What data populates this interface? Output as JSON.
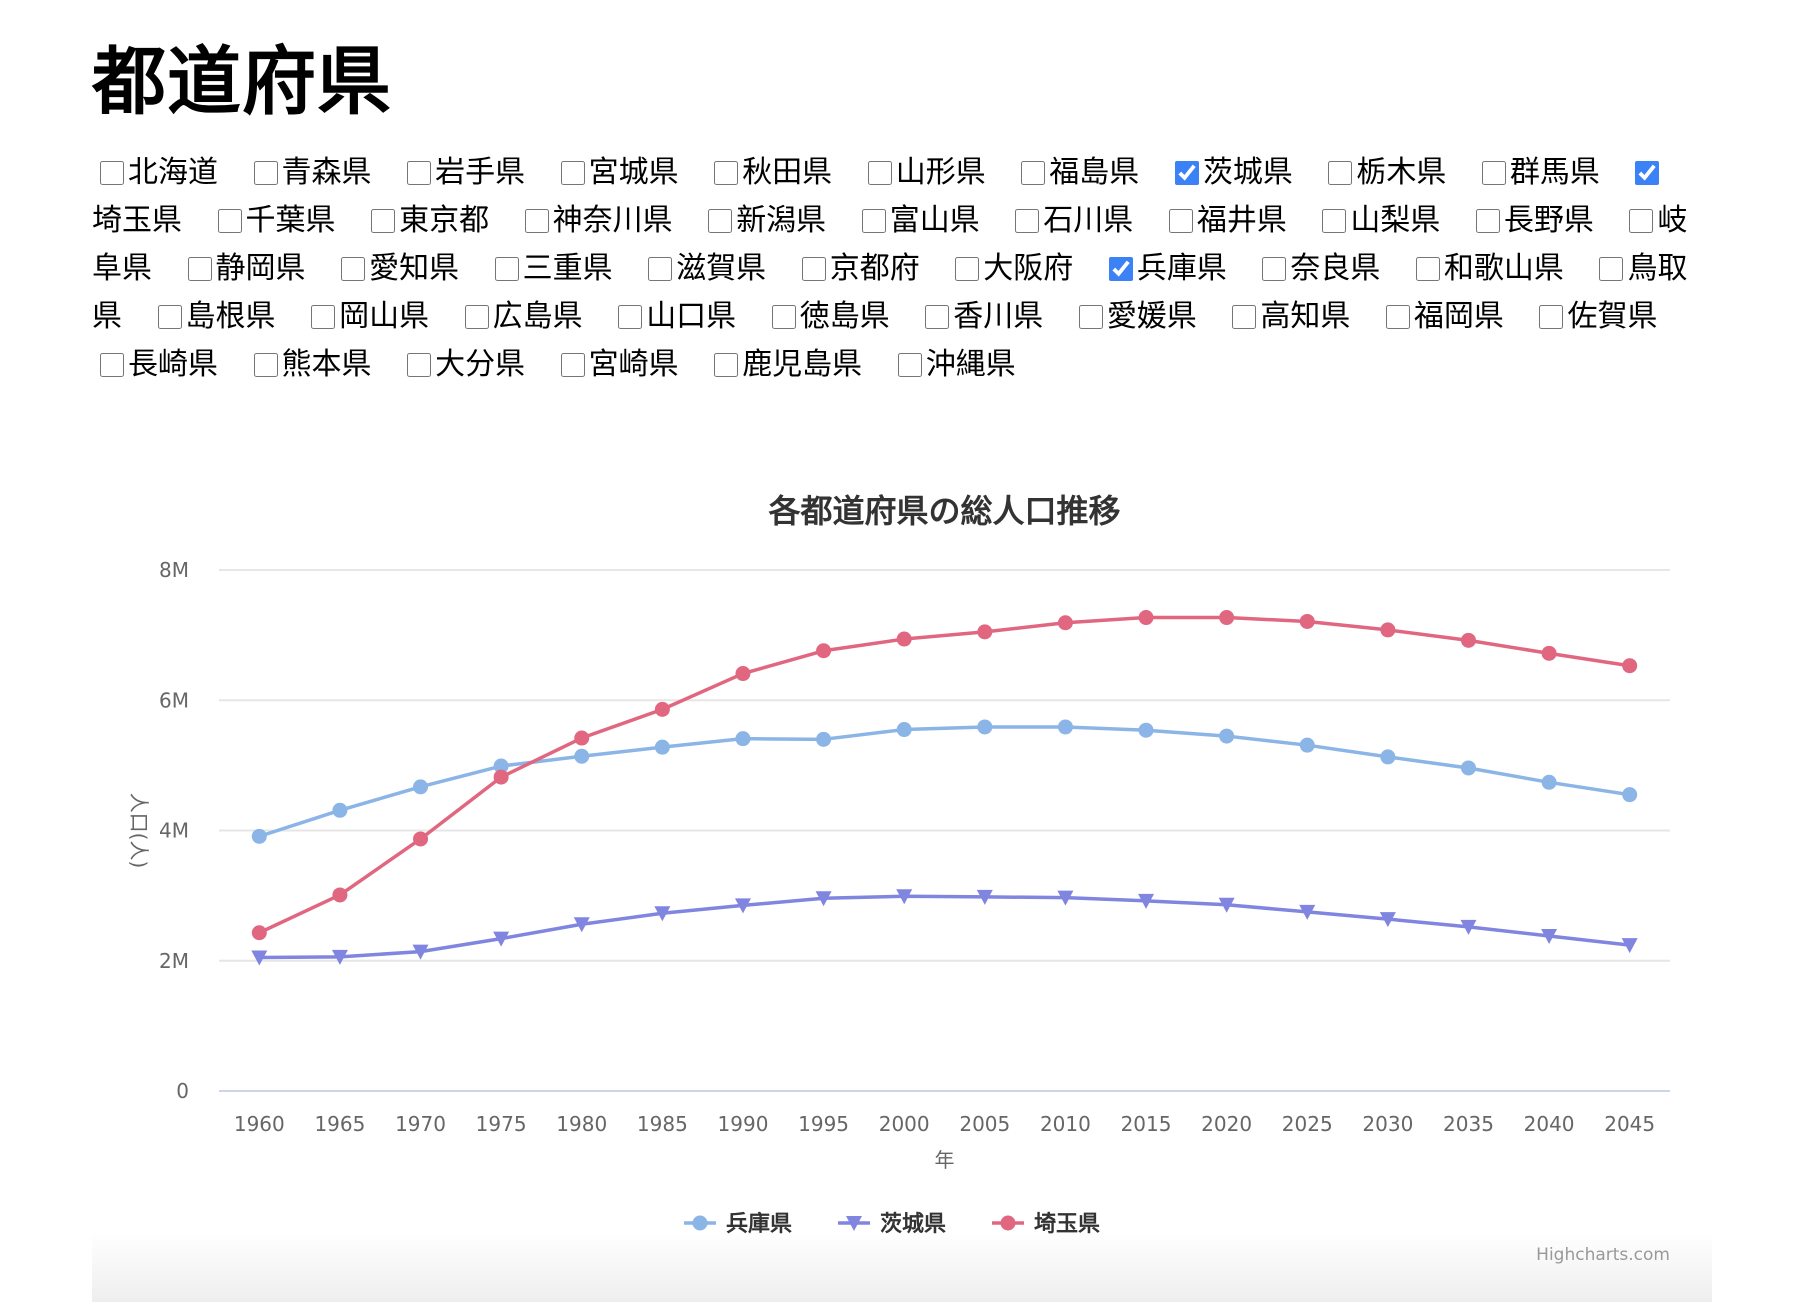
{
  "page": {
    "title": "都道府県"
  },
  "prefectures": [
    {
      "name": "北海道",
      "checked": false
    },
    {
      "name": "青森県",
      "checked": false
    },
    {
      "name": "岩手県",
      "checked": false
    },
    {
      "name": "宮城県",
      "checked": false
    },
    {
      "name": "秋田県",
      "checked": false
    },
    {
      "name": "山形県",
      "checked": false
    },
    {
      "name": "福島県",
      "checked": false
    },
    {
      "name": "茨城県",
      "checked": true
    },
    {
      "name": "栃木県",
      "checked": false
    },
    {
      "name": "群馬県",
      "checked": false
    },
    {
      "name": "埼玉県",
      "checked": true
    },
    {
      "name": "千葉県",
      "checked": false
    },
    {
      "name": "東京都",
      "checked": false
    },
    {
      "name": "神奈川県",
      "checked": false
    },
    {
      "name": "新潟県",
      "checked": false
    },
    {
      "name": "富山県",
      "checked": false
    },
    {
      "name": "石川県",
      "checked": false
    },
    {
      "name": "福井県",
      "checked": false
    },
    {
      "name": "山梨県",
      "checked": false
    },
    {
      "name": "長野県",
      "checked": false
    },
    {
      "name": "岐阜県",
      "checked": false
    },
    {
      "name": "静岡県",
      "checked": false
    },
    {
      "name": "愛知県",
      "checked": false
    },
    {
      "name": "三重県",
      "checked": false
    },
    {
      "name": "滋賀県",
      "checked": false
    },
    {
      "name": "京都府",
      "checked": false
    },
    {
      "name": "大阪府",
      "checked": false
    },
    {
      "name": "兵庫県",
      "checked": true
    },
    {
      "name": "奈良県",
      "checked": false
    },
    {
      "name": "和歌山県",
      "checked": false
    },
    {
      "name": "鳥取県",
      "checked": false
    },
    {
      "name": "島根県",
      "checked": false
    },
    {
      "name": "岡山県",
      "checked": false
    },
    {
      "name": "広島県",
      "checked": false
    },
    {
      "name": "山口県",
      "checked": false
    },
    {
      "name": "徳島県",
      "checked": false
    },
    {
      "name": "香川県",
      "checked": false
    },
    {
      "name": "愛媛県",
      "checked": false
    },
    {
      "name": "高知県",
      "checked": false
    },
    {
      "name": "福岡県",
      "checked": false
    },
    {
      "name": "佐賀県",
      "checked": false
    },
    {
      "name": "長崎県",
      "checked": false
    },
    {
      "name": "熊本県",
      "checked": false
    },
    {
      "name": "大分県",
      "checked": false
    },
    {
      "name": "宮崎県",
      "checked": false
    },
    {
      "name": "鹿児島県",
      "checked": false
    },
    {
      "name": "沖縄県",
      "checked": false
    }
  ],
  "credits": "Highcharts.com",
  "chart_data": {
    "type": "line",
    "title": "各都道府県の総人口推移",
    "xlabel": "年",
    "ylabel": "人口(人)",
    "x": [
      1960,
      1965,
      1970,
      1975,
      1980,
      1985,
      1990,
      1995,
      2000,
      2005,
      2010,
      2015,
      2020,
      2025,
      2030,
      2035,
      2040,
      2045
    ],
    "ylim": [
      0,
      8000000
    ],
    "yticks": [
      0,
      2000000,
      4000000,
      6000000,
      8000000
    ],
    "ytick_labels": [
      "0",
      "2M",
      "4M",
      "6M",
      "8M"
    ],
    "grid": true,
    "legend_position": "bottom-center",
    "series": [
      {
        "name": "兵庫県",
        "color": "#8bb4e7",
        "marker": "circle",
        "values": [
          3910000,
          4310000,
          4670000,
          4990000,
          5140000,
          5280000,
          5410000,
          5400000,
          5550000,
          5590000,
          5590000,
          5540000,
          5450000,
          5310000,
          5130000,
          4960000,
          4740000,
          4550000
        ]
      },
      {
        "name": "茨城県",
        "color": "#8085e0",
        "marker": "triangle-down",
        "values": [
          2050000,
          2060000,
          2140000,
          2340000,
          2560000,
          2730000,
          2850000,
          2960000,
          2990000,
          2980000,
          2970000,
          2920000,
          2860000,
          2750000,
          2640000,
          2520000,
          2380000,
          2240000
        ]
      },
      {
        "name": "埼玉県",
        "color": "#e0677f",
        "marker": "circle",
        "values": [
          2430000,
          3010000,
          3870000,
          4820000,
          5420000,
          5860000,
          6410000,
          6760000,
          6940000,
          7050000,
          7190000,
          7270000,
          7270000,
          7210000,
          7080000,
          6920000,
          6720000,
          6530000
        ]
      }
    ]
  }
}
